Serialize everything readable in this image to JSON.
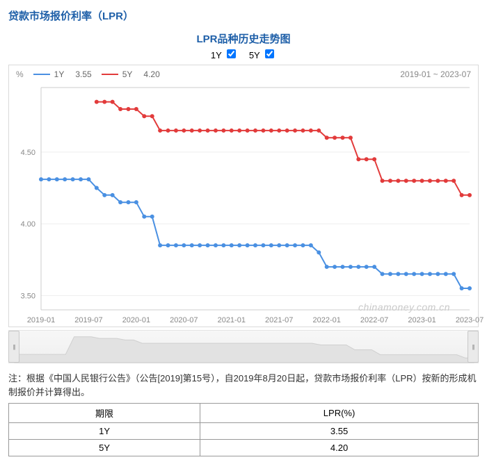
{
  "section_title": "贷款市场报价利率（LPR）",
  "chart": {
    "title": "LPR品种历史走势图",
    "checkboxes": [
      {
        "label": "1Y",
        "checked": true
      },
      {
        "label": "5Y",
        "checked": true
      }
    ],
    "y_unit": "%",
    "date_range": "2019-01 ~ 2023-07",
    "watermark": "chinamoney.com.cn",
    "background_color": "#ffffff",
    "grid_color": "#eeeeee",
    "axis_color": "#cccccc",
    "tick_color": "#888888",
    "ylim": [
      3.4,
      4.95
    ],
    "yticks": [
      3.5,
      4.0,
      4.5
    ],
    "xticks": [
      "2019-01",
      "2019-07",
      "2020-01",
      "2020-07",
      "2021-01",
      "2021-07",
      "2022-01",
      "2022-07",
      "2023-01",
      "2023-07"
    ],
    "series": [
      {
        "name": "1Y",
        "color": "#4a90e2",
        "last_value_label": "3.55",
        "line_width": 2,
        "marker_radius": 3,
        "values": [
          4.31,
          4.31,
          4.31,
          4.31,
          4.31,
          4.31,
          4.31,
          4.25,
          4.2,
          4.2,
          4.15,
          4.15,
          4.15,
          4.05,
          4.05,
          3.85,
          3.85,
          3.85,
          3.85,
          3.85,
          3.85,
          3.85,
          3.85,
          3.85,
          3.85,
          3.85,
          3.85,
          3.85,
          3.85,
          3.85,
          3.85,
          3.85,
          3.85,
          3.85,
          3.85,
          3.8,
          3.7,
          3.7,
          3.7,
          3.7,
          3.7,
          3.7,
          3.7,
          3.65,
          3.65,
          3.65,
          3.65,
          3.65,
          3.65,
          3.65,
          3.65,
          3.65,
          3.65,
          3.55,
          3.55
        ]
      },
      {
        "name": "5Y",
        "color": "#e23b3b",
        "last_value_label": "4.20",
        "line_width": 2,
        "marker_radius": 3,
        "values": [
          null,
          null,
          null,
          null,
          null,
          null,
          null,
          4.85,
          4.85,
          4.85,
          4.8,
          4.8,
          4.8,
          4.75,
          4.75,
          4.65,
          4.65,
          4.65,
          4.65,
          4.65,
          4.65,
          4.65,
          4.65,
          4.65,
          4.65,
          4.65,
          4.65,
          4.65,
          4.65,
          4.65,
          4.65,
          4.65,
          4.65,
          4.65,
          4.65,
          4.65,
          4.6,
          4.6,
          4.6,
          4.6,
          4.45,
          4.45,
          4.45,
          4.3,
          4.3,
          4.3,
          4.3,
          4.3,
          4.3,
          4.3,
          4.3,
          4.3,
          4.3,
          4.2,
          4.2
        ]
      }
    ]
  },
  "footnote": "注：根据《中国人民银行公告》（公告[2019]第15号），自2019年8月20日起，贷款市场报价利率（LPR）按新的形成机制报价并计算得出。",
  "table": {
    "columns": [
      "期限",
      "LPR(%)"
    ],
    "rows": [
      [
        "1Y",
        "3.55"
      ],
      [
        "5Y",
        "4.20"
      ]
    ]
  }
}
